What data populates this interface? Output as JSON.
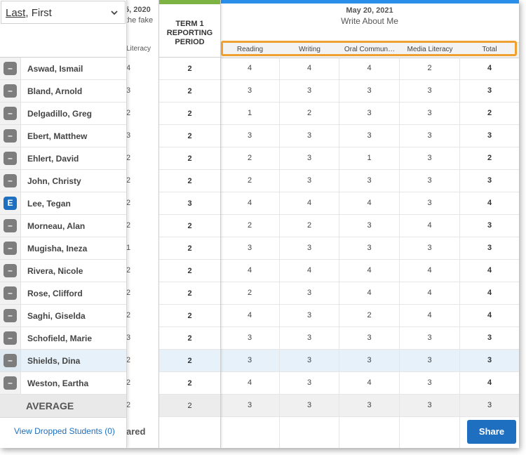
{
  "sort": {
    "label_underlined": "Last",
    "label_rest": ", First"
  },
  "students": [
    {
      "badge": "–",
      "name": "Aswad, Ismail",
      "prev": "4",
      "term": "2",
      "scores": [
        "4",
        "4",
        "4",
        "2",
        "4"
      ]
    },
    {
      "badge": "–",
      "name": "Bland, Arnold",
      "prev": "3",
      "term": "2",
      "scores": [
        "3",
        "3",
        "3",
        "3",
        "3"
      ]
    },
    {
      "badge": "–",
      "name": "Delgadillo, Greg",
      "prev": "2",
      "term": "2",
      "scores": [
        "1",
        "2",
        "3",
        "3",
        "2"
      ]
    },
    {
      "badge": "–",
      "name": "Ebert, Matthew",
      "prev": "3",
      "term": "2",
      "scores": [
        "3",
        "3",
        "3",
        "3",
        "3"
      ]
    },
    {
      "badge": "–",
      "name": "Ehlert, David",
      "prev": "2",
      "term": "2",
      "scores": [
        "2",
        "3",
        "1",
        "3",
        "2"
      ]
    },
    {
      "badge": "–",
      "name": "John, Christy",
      "prev": "2",
      "term": "2",
      "scores": [
        "2",
        "3",
        "3",
        "3",
        "3"
      ]
    },
    {
      "badge": "E",
      "name": "Lee, Tegan",
      "prev": "2",
      "term": "3",
      "scores": [
        "4",
        "4",
        "4",
        "3",
        "4"
      ]
    },
    {
      "badge": "–",
      "name": "Morneau, Alan",
      "prev": "2",
      "term": "2",
      "scores": [
        "2",
        "2",
        "3",
        "4",
        "3"
      ]
    },
    {
      "badge": "–",
      "name": "Mugisha, Ineza",
      "prev": "1",
      "term": "2",
      "scores": [
        "3",
        "3",
        "3",
        "3",
        "3"
      ]
    },
    {
      "badge": "–",
      "name": "Rivera, Nicole",
      "prev": "2",
      "term": "2",
      "scores": [
        "4",
        "4",
        "4",
        "4",
        "4"
      ]
    },
    {
      "badge": "–",
      "name": "Rose, Clifford",
      "prev": "2",
      "term": "2",
      "scores": [
        "2",
        "3",
        "4",
        "4",
        "4"
      ]
    },
    {
      "badge": "–",
      "name": "Saghi, Giselda",
      "prev": "2",
      "term": "2",
      "scores": [
        "4",
        "3",
        "2",
        "4",
        "4"
      ]
    },
    {
      "badge": "–",
      "name": "Schofield, Marie",
      "prev": "3",
      "term": "2",
      "scores": [
        "3",
        "3",
        "3",
        "3",
        "3"
      ]
    },
    {
      "badge": "–",
      "name": "Shields, Dina",
      "prev": "2",
      "term": "2",
      "scores": [
        "3",
        "3",
        "3",
        "3",
        "3"
      ]
    },
    {
      "badge": "–",
      "name": "Weston, Eartha",
      "prev": "2",
      "term": "2",
      "scores": [
        "4",
        "3",
        "4",
        "3",
        "4"
      ]
    }
  ],
  "average": {
    "label": "AVERAGE",
    "prev": "2",
    "term": "2",
    "scores": [
      "3",
      "3",
      "3",
      "3",
      "3"
    ]
  },
  "dropped_link": "View Dropped Students (0)",
  "prev_assessment": {
    "date": "5, 2020",
    "subtitle": "the fake",
    "col": "Literacy",
    "footer": "ared"
  },
  "term": {
    "line1": "TERM 1",
    "line2": "REPORTING",
    "line3": "PERIOD"
  },
  "assessment": {
    "date": "May 20, 2021",
    "title": "Write About Me",
    "columns": [
      "Reading",
      "Writing",
      "Oral Commun…",
      "Media Literacy",
      "Total"
    ]
  },
  "share_label": "Share",
  "colors": {
    "accent": "#1e6fbf",
    "term_bar": "#7cb342",
    "assessment_bar": "#2a8fe8",
    "highlight": "#f0a030"
  }
}
